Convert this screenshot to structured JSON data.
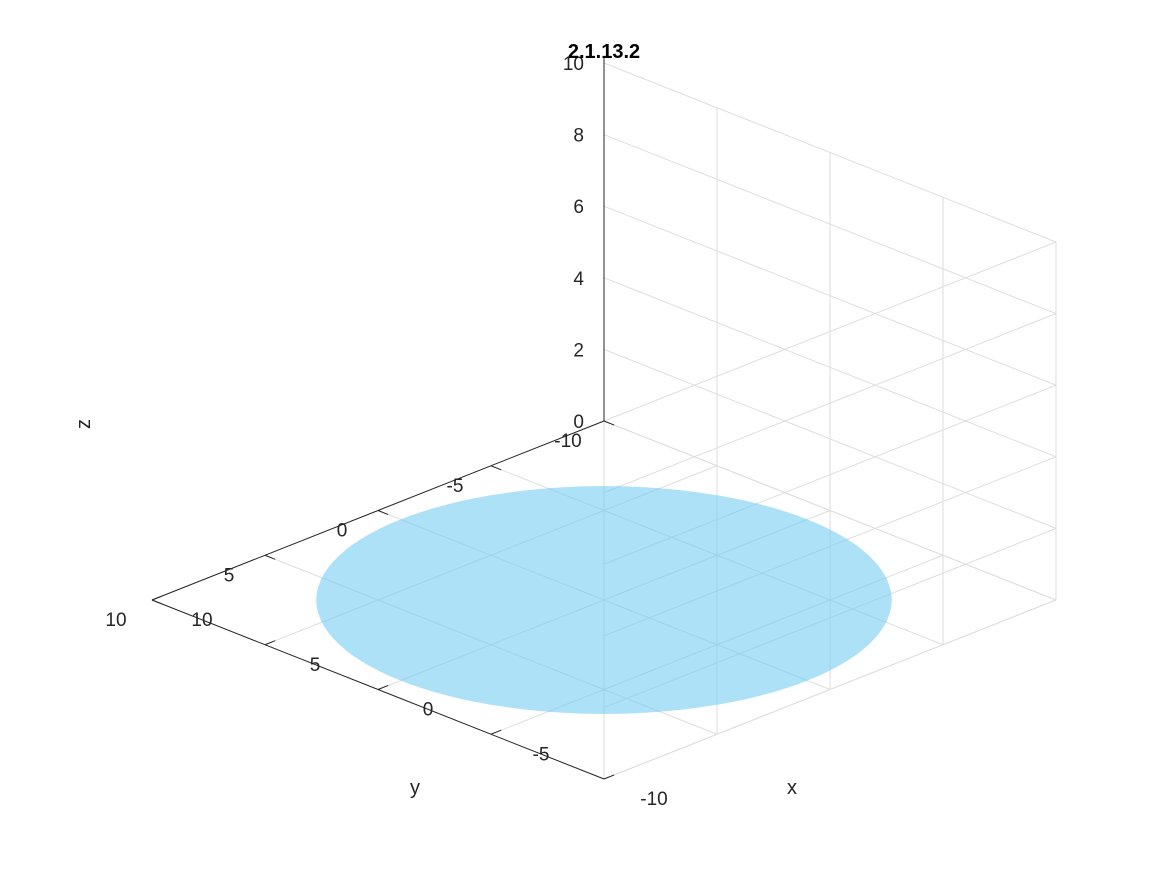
{
  "chart_data": {
    "type": "surface3d",
    "title": "2.1.13.2",
    "xlabel": "x",
    "ylabel": "y",
    "zlabel": "z",
    "xlim": [
      -10,
      10
    ],
    "ylim": [
      -10,
      10
    ],
    "zlim": [
      0,
      10
    ],
    "x_ticks": [
      "-10",
      "-5",
      "0",
      "5",
      "10"
    ],
    "y_ticks": [
      "-10",
      "-5",
      "0",
      "5",
      "10"
    ],
    "z_ticks": [
      "0",
      "2",
      "4",
      "6",
      "8",
      "10"
    ],
    "grid": true,
    "surfaces": [
      {
        "shape": "hemisphere-z>=0",
        "radius": 9,
        "center": [
          0,
          0,
          0
        ],
        "color": "#4dbeee"
      },
      {
        "shape": "disk-z=0",
        "radius": 9,
        "center": [
          0,
          0,
          0
        ],
        "color": "#4dbeee"
      }
    ],
    "face_alpha": 0.75
  }
}
